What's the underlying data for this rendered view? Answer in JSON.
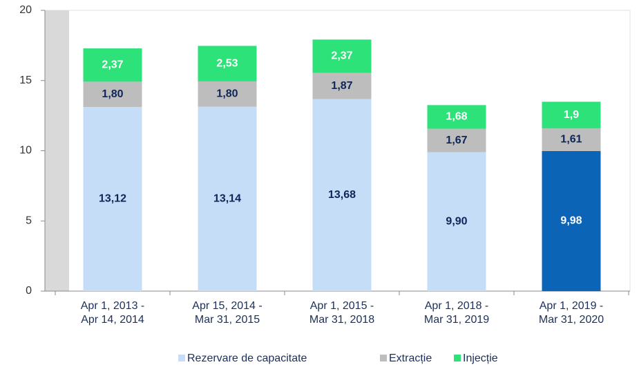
{
  "chart_data": {
    "type": "stacked_bar",
    "categories": [
      "Apr 1, 2013 -\nApr 14, 2014",
      "Apr 15, 2014 -\nMar 31, 2015",
      "Apr 1, 2015 -\nMar 31, 2018",
      "Apr 1, 2018 -\nMar 31, 2019",
      "Apr 1, 2019 -\nMar 31, 2020"
    ],
    "series": [
      {
        "name": "Rezervare de capacitate",
        "color": "#c6ddf8",
        "colors": [
          "#c6ddf8",
          "#c6ddf8",
          "#c6ddf8",
          "#c6ddf8",
          "#0b64b5"
        ],
        "label_colors": [
          "#0e2557",
          "#0e2557",
          "#0e2557",
          "#0e2557",
          "#ffffff"
        ],
        "values": [
          13.12,
          13.14,
          13.68,
          9.9,
          9.98
        ],
        "value_labels": [
          "13,12",
          "13,14",
          "13,68",
          "9,90",
          "9,98"
        ]
      },
      {
        "name": "Extracție",
        "color": "#bdbdbd",
        "colors": [
          "#bdbdbd",
          "#bdbdbd",
          "#bdbdbd",
          "#bdbdbd",
          "#bdbdbd"
        ],
        "label_colors": [
          "#0e2557",
          "#0e2557",
          "#0e2557",
          "#0e2557",
          "#0e2557"
        ],
        "values": [
          1.8,
          1.8,
          1.87,
          1.67,
          1.61
        ],
        "value_labels": [
          "1,80",
          "1,80",
          "1,87",
          "1,67",
          "1,61"
        ]
      },
      {
        "name": "Injecție",
        "color": "#2ee27a",
        "colors": [
          "#2ee27a",
          "#2ee27a",
          "#2ee27a",
          "#2ee27a",
          "#2ee27a"
        ],
        "label_colors": [
          "#ffffff",
          "#ffffff",
          "#ffffff",
          "#ffffff",
          "#ffffff"
        ],
        "values": [
          2.37,
          2.53,
          2.37,
          1.68,
          1.9
        ],
        "value_labels": [
          "2,37",
          "2,53",
          "2,37",
          "1,68",
          "1,9"
        ]
      }
    ],
    "ylim": [
      0,
      20
    ],
    "yticks": [
      0,
      5,
      10,
      15,
      20
    ],
    "grid": false,
    "legend": "bottom"
  }
}
